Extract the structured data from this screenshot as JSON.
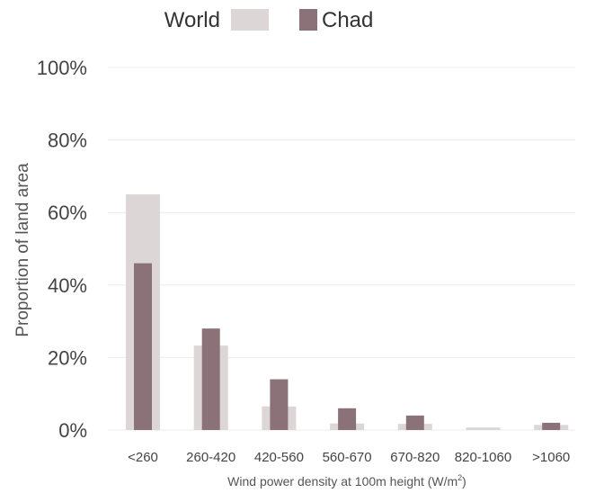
{
  "chart_data": {
    "type": "bar",
    "categories": [
      "<260",
      "260-420",
      "420-560",
      "560-670",
      "670-820",
      "820-1060",
      ">1060"
    ],
    "series": [
      {
        "name": "World",
        "color": "#dcd6d7",
        "values": [
          65,
          23.3,
          6.5,
          1.8,
          1.7,
          0.7,
          1.4
        ]
      },
      {
        "name": "Chad",
        "color": "#8a7278",
        "values": [
          46,
          28,
          14,
          6,
          4,
          0,
          2
        ]
      }
    ],
    "title": "",
    "xlabel_main": "Wind power density at 100m height (W/m",
    "xlabel_sup": "2",
    "xlabel_end": ")",
    "ylabel": "Proportion of land area",
    "ylim": [
      0,
      100
    ],
    "yticks": [
      0,
      20,
      40,
      60,
      80,
      100
    ],
    "ytick_labels": [
      "0%",
      "20%",
      "40%",
      "60%",
      "80%",
      "100%"
    ],
    "grid": true,
    "legend_position": "top"
  }
}
